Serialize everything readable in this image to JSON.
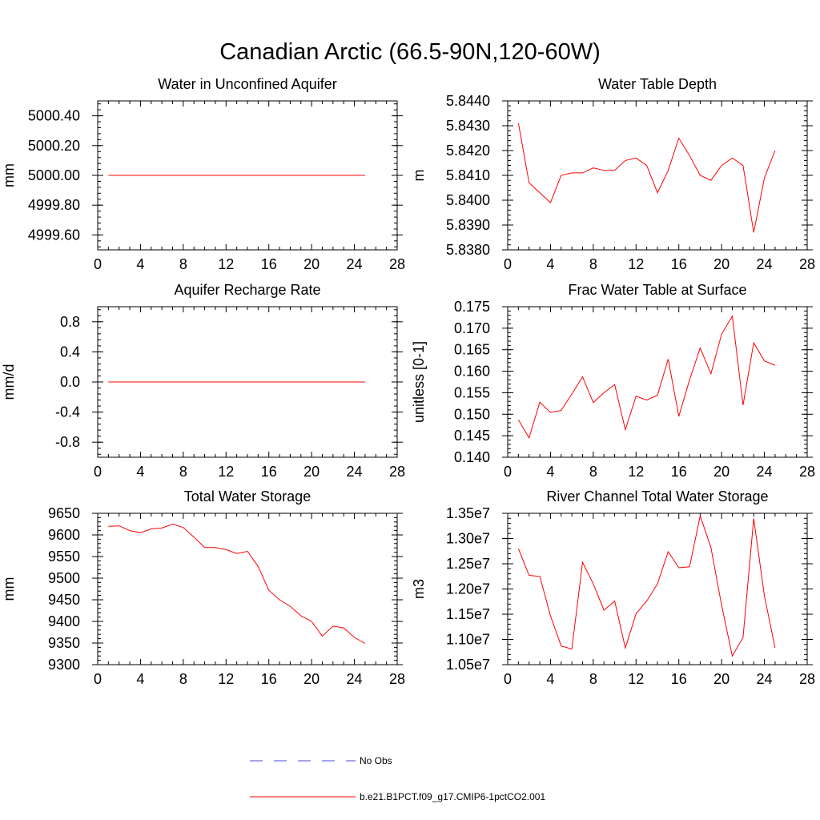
{
  "title": "Canadian Arctic (66.5-90N,120-60W)",
  "colors": {
    "model": "#ff0000",
    "obs": "#4a4adc",
    "axis": "#000000"
  },
  "legend": {
    "obs_label": "No Obs",
    "model_label": "b.e21.B1PCT.f09_g17.CMIP6-1pctCO2.001"
  },
  "chart_data": [
    {
      "type": "line",
      "title": "Water in Unconfined Aquifer",
      "ylabel": "mm",
      "xlim": [
        0,
        28
      ],
      "xticks": [
        0,
        4,
        8,
        12,
        16,
        20,
        24,
        28
      ],
      "ylim": [
        4999.5,
        5000.5
      ],
      "yticks": [
        4999.6,
        4999.8,
        5000.0,
        5000.2,
        5000.4
      ],
      "ytick_labels": [
        "4999.60",
        "4999.80",
        "5000.00",
        "5000.20",
        "5000.40"
      ],
      "x": [
        1,
        2,
        3,
        4,
        5,
        6,
        7,
        8,
        9,
        10,
        11,
        12,
        13,
        14,
        15,
        16,
        17,
        18,
        19,
        20,
        21,
        22,
        23,
        24,
        25
      ],
      "series": [
        {
          "values": [
            5000.0,
            5000.0,
            5000.0,
            5000.0,
            5000.0,
            5000.0,
            5000.0,
            5000.0,
            5000.0,
            5000.0,
            5000.0,
            5000.0,
            5000.0,
            5000.0,
            5000.0,
            5000.0,
            5000.0,
            5000.0,
            5000.0,
            5000.0,
            5000.0,
            5000.0,
            5000.0,
            5000.0,
            5000.0
          ]
        }
      ]
    },
    {
      "type": "line",
      "title": "Water Table Depth",
      "ylabel": "m",
      "xlim": [
        0,
        28
      ],
      "xticks": [
        0,
        4,
        8,
        12,
        16,
        20,
        24,
        28
      ],
      "ylim": [
        5.838,
        5.844
      ],
      "yticks": [
        5.838,
        5.839,
        5.84,
        5.841,
        5.842,
        5.843,
        5.844
      ],
      "ytick_labels": [
        "5.8380",
        "5.8390",
        "5.8400",
        "5.8410",
        "5.8420",
        "5.8430",
        "5.8440"
      ],
      "x": [
        1,
        2,
        3,
        4,
        5,
        6,
        7,
        8,
        9,
        10,
        11,
        12,
        13,
        14,
        15,
        16,
        17,
        18,
        19,
        20,
        21,
        22,
        23,
        24,
        25
      ],
      "series": [
        {
          "values": [
            5.8431,
            5.8407,
            5.8403,
            5.8399,
            5.841,
            5.8411,
            5.8411,
            5.8413,
            5.8412,
            5.8412,
            5.8416,
            5.8417,
            5.8414,
            5.8403,
            5.8412,
            5.8425,
            5.8418,
            5.841,
            5.8408,
            5.8414,
            5.8417,
            5.8414,
            5.8387,
            5.8409,
            5.842
          ]
        }
      ]
    },
    {
      "type": "line",
      "title": "Aquifer Recharge Rate",
      "ylabel": "mm/d",
      "xlim": [
        0,
        28
      ],
      "xticks": [
        0,
        4,
        8,
        12,
        16,
        20,
        24,
        28
      ],
      "ylim": [
        -1.0,
        1.0
      ],
      "yticks": [
        -0.8,
        -0.4,
        0.0,
        0.4,
        0.8
      ],
      "ytick_labels": [
        "-0.8",
        "-0.4",
        "0.0",
        "0.4",
        "0.8"
      ],
      "x": [
        1,
        2,
        3,
        4,
        5,
        6,
        7,
        8,
        9,
        10,
        11,
        12,
        13,
        14,
        15,
        16,
        17,
        18,
        19,
        20,
        21,
        22,
        23,
        24,
        25
      ],
      "series": [
        {
          "values": [
            0,
            0,
            0,
            0,
            0,
            0,
            0,
            0,
            0,
            0,
            0,
            0,
            0,
            0,
            0,
            0,
            0,
            0,
            0,
            0,
            0,
            0,
            0,
            0,
            0
          ]
        }
      ]
    },
    {
      "type": "line",
      "title": "Frac Water Table at Surface",
      "ylabel": "unitless [0-1]",
      "xlim": [
        0,
        28
      ],
      "xticks": [
        0,
        4,
        8,
        12,
        16,
        20,
        24,
        28
      ],
      "ylim": [
        0.14,
        0.175
      ],
      "yticks": [
        0.14,
        0.145,
        0.15,
        0.155,
        0.16,
        0.165,
        0.17,
        0.175
      ],
      "ytick_labels": [
        "0.140",
        "0.145",
        "0.150",
        "0.155",
        "0.160",
        "0.165",
        "0.170",
        "0.175"
      ],
      "x": [
        1,
        2,
        3,
        4,
        5,
        6,
        7,
        8,
        9,
        10,
        11,
        12,
        13,
        14,
        15,
        16,
        17,
        18,
        19,
        20,
        21,
        22,
        23,
        24,
        25
      ],
      "series": [
        {
          "values": [
            0.1487,
            0.1445,
            0.1528,
            0.1504,
            0.1509,
            0.1547,
            0.1587,
            0.1527,
            0.155,
            0.1569,
            0.1464,
            0.1542,
            0.1533,
            0.1544,
            0.1628,
            0.1495,
            0.158,
            0.1654,
            0.1594,
            0.1686,
            0.1728,
            0.1521,
            0.1666,
            0.1624,
            0.1614
          ]
        }
      ]
    },
    {
      "type": "line",
      "title": "Total Water Storage",
      "ylabel": "mm",
      "xlim": [
        0,
        28
      ],
      "xticks": [
        0,
        4,
        8,
        12,
        16,
        20,
        24,
        28
      ],
      "ylim": [
        9300,
        9650
      ],
      "yticks": [
        9300,
        9350,
        9400,
        9450,
        9500,
        9550,
        9600,
        9650
      ],
      "ytick_labels": [
        "9300",
        "9350",
        "9400",
        "9450",
        "9500",
        "9550",
        "9600",
        "9650"
      ],
      "x": [
        1,
        2,
        3,
        4,
        5,
        6,
        7,
        8,
        9,
        10,
        11,
        12,
        13,
        14,
        15,
        16,
        17,
        18,
        19,
        20,
        21,
        22,
        23,
        24,
        25
      ],
      "series": [
        {
          "values": [
            9620,
            9621,
            9610,
            9605,
            9614,
            9616,
            9625,
            9617,
            9595,
            9571,
            9571,
            9566,
            9557,
            9562,
            9527,
            9472,
            9450,
            9435,
            9413,
            9400,
            9366,
            9389,
            9385,
            9363,
            9349
          ]
        }
      ]
    },
    {
      "type": "line",
      "title": "River Channel Total Water Storage",
      "ylabel": "m3",
      "xlim": [
        0,
        28
      ],
      "xticks": [
        0,
        4,
        8,
        12,
        16,
        20,
        24,
        28
      ],
      "ylim": [
        10500000,
        13500000
      ],
      "yticks": [
        10500000,
        11000000,
        11500000,
        12000000,
        12500000,
        13000000,
        13500000
      ],
      "ytick_labels": [
        "1.05e7",
        "1.10e7",
        "1.15e7",
        "1.20e7",
        "1.25e7",
        "1.30e7",
        "1.35e7"
      ],
      "x": [
        1,
        2,
        3,
        4,
        5,
        6,
        7,
        8,
        9,
        10,
        11,
        12,
        13,
        14,
        15,
        16,
        17,
        18,
        19,
        20,
        21,
        22,
        23,
        24,
        25
      ],
      "series": [
        {
          "values": [
            12800000,
            12270000,
            12250000,
            11470000,
            10870000,
            10810000,
            12530000,
            12100000,
            11580000,
            11760000,
            10830000,
            11510000,
            11760000,
            12100000,
            12740000,
            12420000,
            12440000,
            13450000,
            12820000,
            11680000,
            10670000,
            11040000,
            13400000,
            11860000,
            10830000
          ]
        }
      ]
    }
  ]
}
